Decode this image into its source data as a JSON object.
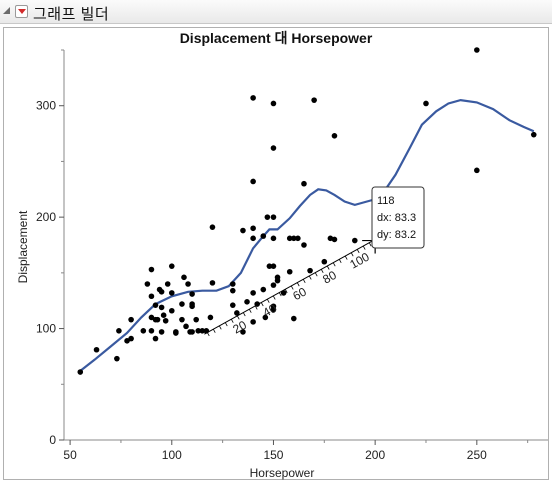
{
  "window": {
    "title": "그래프 빌더"
  },
  "icons": {
    "disclosure": "collapse-triangle-icon",
    "menu": "red-triangle-menu-icon"
  },
  "colors": {
    "smoother": "#3a5aa0",
    "points": "#000000",
    "crosshair": "#000000"
  },
  "chart_data": {
    "type": "scatter",
    "title": "Displacement 대 Horsepower",
    "xlabel": "Horsepower",
    "ylabel": "Displacement",
    "xlim": [
      47,
      285
    ],
    "ylim": [
      0,
      350
    ],
    "xticks": [
      50,
      100,
      150,
      200,
      250
    ],
    "yticks": [
      0,
      100,
      200,
      300
    ],
    "grid": false,
    "legend": "none",
    "points": [
      [
        55,
        61
      ],
      [
        63,
        81
      ],
      [
        73,
        73
      ],
      [
        74,
        98
      ],
      [
        78,
        89
      ],
      [
        80,
        91
      ],
      [
        80,
        108
      ],
      [
        86,
        98
      ],
      [
        88,
        140
      ],
      [
        90,
        129
      ],
      [
        90,
        153
      ],
      [
        90,
        110
      ],
      [
        90,
        98
      ],
      [
        92,
        121
      ],
      [
        92,
        91
      ],
      [
        92,
        108
      ],
      [
        93,
        108
      ],
      [
        94,
        135
      ],
      [
        95,
        97
      ],
      [
        95,
        119
      ],
      [
        95,
        133
      ],
      [
        96,
        112
      ],
      [
        97,
        107
      ],
      [
        98,
        140
      ],
      [
        100,
        132
      ],
      [
        100,
        156
      ],
      [
        100,
        116
      ],
      [
        102,
        97
      ],
      [
        102,
        96
      ],
      [
        105,
        122
      ],
      [
        105,
        108
      ],
      [
        106,
        146
      ],
      [
        107,
        102
      ],
      [
        108,
        140
      ],
      [
        109,
        97
      ],
      [
        110,
        122
      ],
      [
        110,
        131
      ],
      [
        110,
        120
      ],
      [
        110,
        97
      ],
      [
        112,
        108
      ],
      [
        113,
        98
      ],
      [
        115,
        98
      ],
      [
        117,
        98
      ],
      [
        119,
        110
      ],
      [
        120,
        141
      ],
      [
        120,
        191
      ],
      [
        130,
        121
      ],
      [
        130,
        134
      ],
      [
        130,
        140
      ],
      [
        132,
        114
      ],
      [
        135,
        188
      ],
      [
        135,
        97
      ],
      [
        137,
        124
      ],
      [
        140,
        132
      ],
      [
        140,
        307
      ],
      [
        140,
        232
      ],
      [
        140,
        190
      ],
      [
        140,
        181
      ],
      [
        140,
        106
      ],
      [
        142,
        122
      ],
      [
        145,
        135
      ],
      [
        145,
        183
      ],
      [
        146,
        110
      ],
      [
        147,
        200
      ],
      [
        148,
        156
      ],
      [
        150,
        302
      ],
      [
        150,
        262
      ],
      [
        150,
        200
      ],
      [
        150,
        181
      ],
      [
        150,
        156
      ],
      [
        150,
        139
      ],
      [
        150,
        120
      ],
      [
        150,
        117
      ],
      [
        152,
        143
      ],
      [
        152,
        146
      ],
      [
        155,
        132
      ],
      [
        158,
        181
      ],
      [
        158,
        151
      ],
      [
        160,
        181
      ],
      [
        160,
        109
      ],
      [
        162,
        181
      ],
      [
        165,
        230
      ],
      [
        165,
        175
      ],
      [
        168,
        152
      ],
      [
        170,
        305
      ],
      [
        175,
        160
      ],
      [
        178,
        181
      ],
      [
        180,
        180
      ],
      [
        180,
        273
      ],
      [
        190,
        179
      ],
      [
        225,
        302
      ],
      [
        250,
        350
      ],
      [
        250,
        242
      ],
      [
        278,
        274
      ]
    ],
    "smoother": [
      [
        55,
        62
      ],
      [
        62,
        72
      ],
      [
        70,
        84
      ],
      [
        78,
        96
      ],
      [
        85,
        110
      ],
      [
        92,
        122
      ],
      [
        100,
        129
      ],
      [
        108,
        133
      ],
      [
        115,
        134
      ],
      [
        122,
        134
      ],
      [
        128,
        138
      ],
      [
        134,
        150
      ],
      [
        140,
        172
      ],
      [
        145,
        183
      ],
      [
        148,
        189
      ],
      [
        152,
        189
      ],
      [
        158,
        199
      ],
      [
        163,
        210
      ],
      [
        168,
        220
      ],
      [
        172,
        225
      ],
      [
        176,
        224
      ],
      [
        180,
        220
      ],
      [
        185,
        214
      ],
      [
        190,
        211
      ],
      [
        196,
        214
      ],
      [
        200,
        216
      ],
      [
        204,
        222
      ],
      [
        210,
        238
      ],
      [
        217,
        262
      ],
      [
        223,
        283
      ],
      [
        230,
        295
      ],
      [
        236,
        302
      ],
      [
        242,
        305
      ],
      [
        250,
        303
      ],
      [
        258,
        297
      ],
      [
        266,
        287
      ],
      [
        273,
        281
      ],
      [
        278,
        277
      ]
    ],
    "cursor": {
      "x": 200,
      "y": 179
    },
    "angled_scale": {
      "anchor": [
        116,
        95
      ],
      "end": [
        203,
        183
      ],
      "ticks": [
        20,
        40,
        60,
        80,
        100
      ],
      "range": 118
    },
    "tooltip": {
      "line1": "118",
      "line2": "dx: 83.3",
      "line3": "dy: 83.2"
    }
  }
}
